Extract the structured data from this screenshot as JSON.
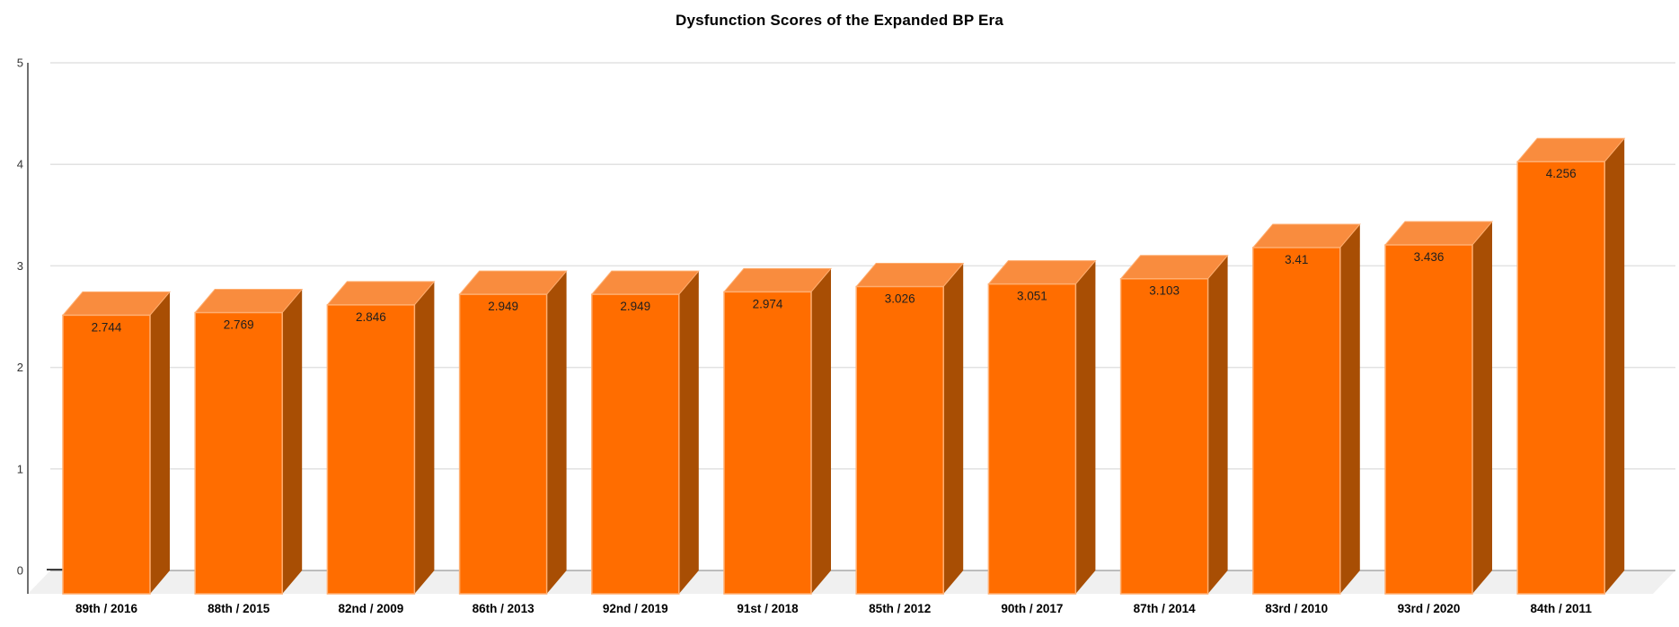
{
  "title": "Dysfunction Scores of the Expanded BP Era",
  "chart_data": {
    "type": "bar",
    "style": "3d-column",
    "title": "Dysfunction Scores of the Expanded BP Era",
    "categories": [
      "89th / 2016",
      "88th / 2015",
      "82nd / 2009",
      "86th / 2013",
      "92nd / 2019",
      "91st / 2018",
      "85th / 2012",
      "90th / 2017",
      "87th / 2014",
      "83rd / 2010",
      "93rd / 2020",
      "84th / 2011"
    ],
    "values": [
      2.744,
      2.769,
      2.846,
      2.949,
      2.949,
      2.974,
      3.026,
      3.051,
      3.103,
      3.41,
      3.436,
      4.256
    ],
    "xlabel": "",
    "ylabel": "",
    "ylim": [
      0,
      5
    ],
    "yticks": [
      0,
      1,
      2,
      3,
      4,
      5
    ],
    "grid": true,
    "legend": "none",
    "value_labels_shown": true,
    "colors": {
      "bar_front": "#FF6D00",
      "bar_top": "#F98C3E",
      "bar_side": "#A84E04",
      "bar_stroke": "#FFAE70",
      "gridline": "#E2E2E2",
      "baseline": "#9A9A9A",
      "zero_tick": "#3D3D3D",
      "floor": "#F0F0F0",
      "axis_line": "#707070",
      "tick_text": "#333333",
      "value_text": "#1F1F1F",
      "category_text": "#000000"
    }
  }
}
